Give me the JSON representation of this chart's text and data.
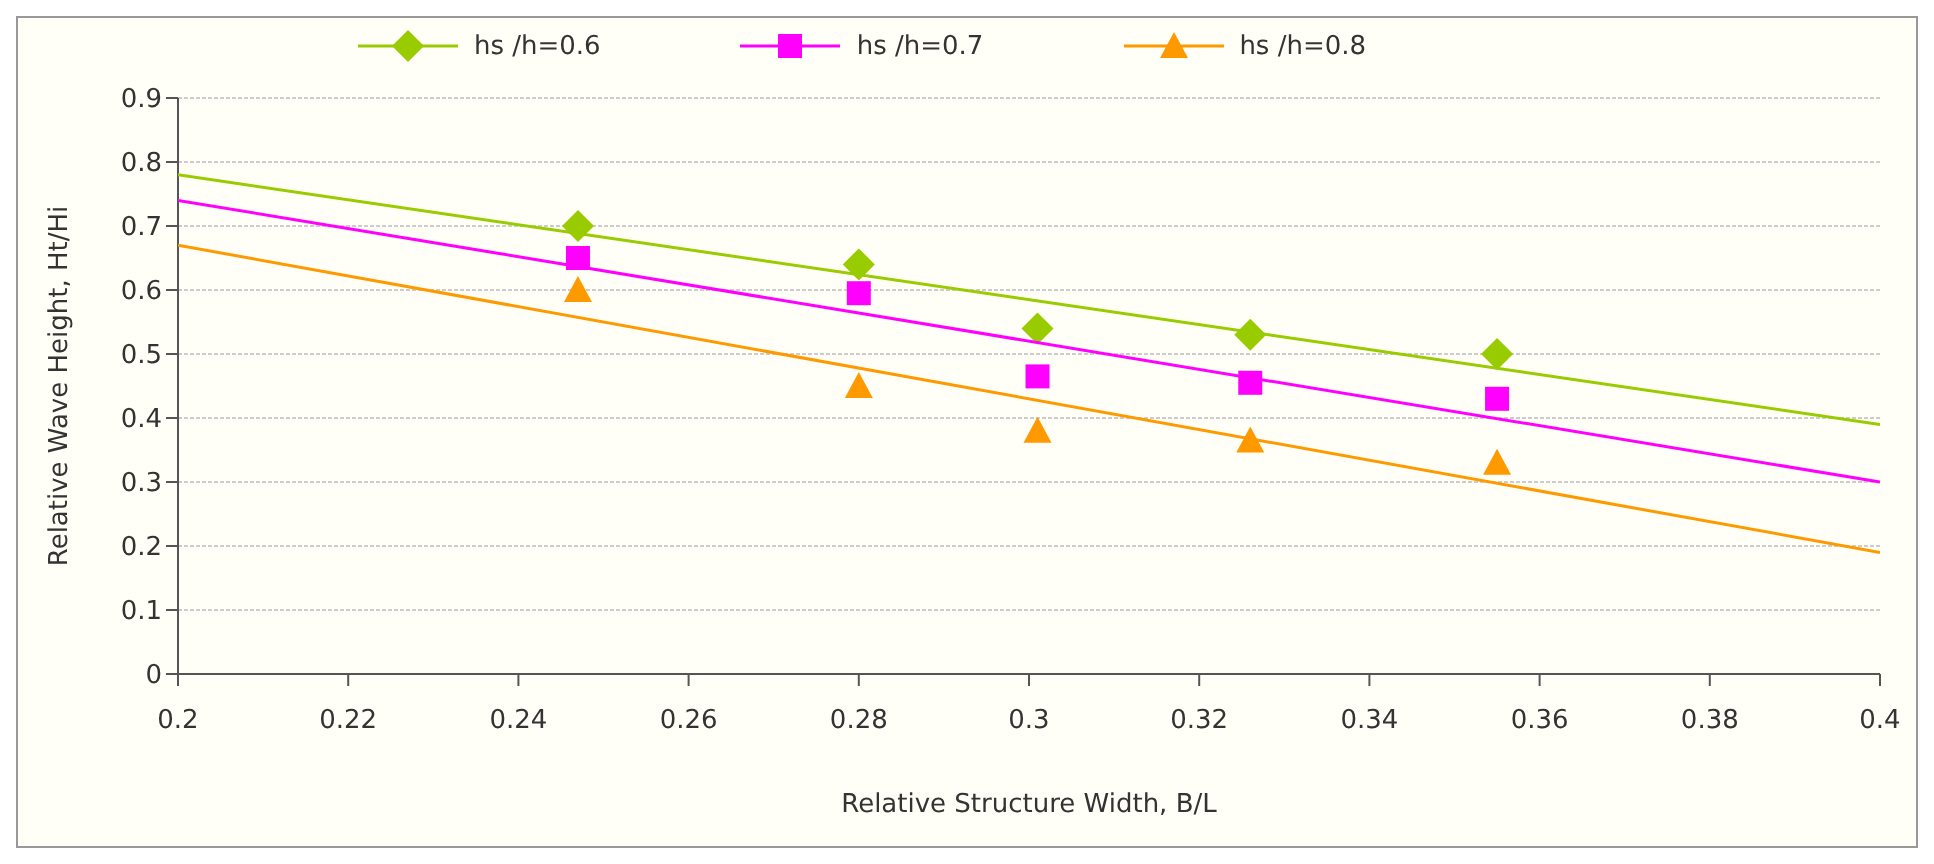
{
  "chart_data": {
    "type": "scatter",
    "xlabel": "Relative Structure Width, B/L",
    "ylabel": "Relative Wave Height, Ht/Hi",
    "xlim": [
      0.2,
      0.4
    ],
    "xticks": [
      0.2,
      0.22,
      0.24,
      0.26,
      0.28,
      0.3,
      0.32,
      0.34,
      0.36,
      0.38,
      0.4
    ],
    "ylim": [
      0,
      0.9
    ],
    "yticks": [
      0,
      0.1,
      0.2,
      0.3,
      0.4,
      0.5,
      0.6,
      0.7,
      0.8,
      0.9
    ],
    "grid": "y",
    "legend": "top",
    "series": [
      {
        "name": "hs /h=0.6",
        "marker": "diamond",
        "color": "#99cc00",
        "x": [
          0.247,
          0.28,
          0.301,
          0.326,
          0.355
        ],
        "values": [
          0.7,
          0.64,
          0.54,
          0.53,
          0.5
        ]
      },
      {
        "name": "hs /h=0.7",
        "marker": "square",
        "color": "#ff00ff",
        "x": [
          0.247,
          0.28,
          0.301,
          0.326,
          0.355
        ],
        "values": [
          0.65,
          0.595,
          0.465,
          0.455,
          0.43
        ]
      },
      {
        "name": "hs /h=0.8",
        "marker": "triangle",
        "color": "#ff9900",
        "x": [
          0.247,
          0.28,
          0.301,
          0.326,
          0.355
        ],
        "values": [
          0.6,
          0.45,
          0.38,
          0.365,
          0.33
        ]
      },
      {
        "type": "line",
        "marker": "none",
        "color": "#99cc00",
        "x": [
          0.2,
          0.4
        ],
        "values": [
          0.78,
          0.39
        ]
      },
      {
        "type": "line",
        "marker": "none",
        "color": "#ff00ff",
        "x": [
          0.2,
          0.4
        ],
        "values": [
          0.74,
          0.3
        ]
      },
      {
        "type": "line",
        "marker": "none",
        "color": "#ff9900",
        "x": [
          0.2,
          0.4
        ],
        "values": [
          0.67,
          0.19
        ]
      }
    ]
  }
}
